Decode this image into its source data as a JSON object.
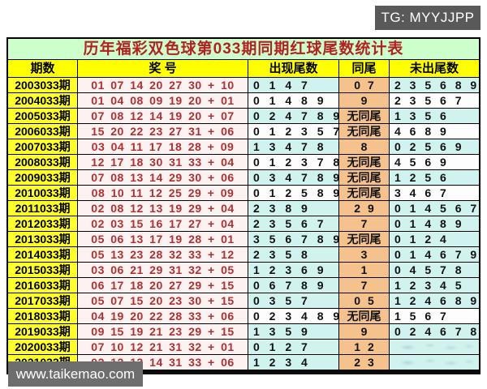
{
  "badges": {
    "tg": "TG: MYYJJPP",
    "site": "www.taikemao.com"
  },
  "table": {
    "title": "历年福彩双色球第033期同期红球尾数统计表",
    "headers": [
      "期数",
      "奖 号",
      "出现尾数",
      "同尾",
      "未出尾数"
    ],
    "rows": [
      {
        "period": "2003033期",
        "numbers": "01 07 14 20 27 30 + 10",
        "tails": "0 1 4 7",
        "same": "0 7",
        "missing": "2 3 5 6 8 9",
        "tint": "cyan",
        "smudged": false
      },
      {
        "period": "2004033期",
        "numbers": "01 04 08 09 19 20 + 01",
        "tails": "0 1 4 8 9",
        "same": "9",
        "missing": "2 3 5 6 7",
        "tint": "white",
        "smudged": false
      },
      {
        "period": "2005033期",
        "numbers": "07 08 12 14 19 20 + 07",
        "tails": "0 2 4 7 8 9",
        "same": "无同尾",
        "missing": "1 3 5 6",
        "tint": "cyan",
        "smudged": false
      },
      {
        "period": "2006033期",
        "numbers": "15 20 22 23 27 31 + 06",
        "tails": "0 1 2 3 5 7",
        "same": "无同尾",
        "missing": "4 6 8 9",
        "tint": "white",
        "smudged": false
      },
      {
        "period": "2007033期",
        "numbers": "03 04 11 17 18 28 + 09",
        "tails": "1 3 4 7 8",
        "same": "8",
        "missing": "0 2 5 6 9",
        "tint": "cyan",
        "smudged": false
      },
      {
        "period": "2008033期",
        "numbers": "12 17 18 30 31 33 + 04",
        "tails": "0 1 2 3 7 8",
        "same": "无同尾",
        "missing": "4 5 6 9",
        "tint": "white",
        "smudged": false
      },
      {
        "period": "2009033期",
        "numbers": "07 08 13 14 29 30 + 06",
        "tails": "0 3 4 7 8 9",
        "same": "无同尾",
        "missing": "1 2 5 6",
        "tint": "cyan",
        "smudged": false
      },
      {
        "period": "2010033期",
        "numbers": "08 10 11 12 25 29 + 09",
        "tails": "0 1 2 5 8 9",
        "same": "无同尾",
        "missing": "3 4 6 7",
        "tint": "white",
        "smudged": false
      },
      {
        "period": "2011033期",
        "numbers": "02 08 12 13 19 29 + 04",
        "tails": "2 3 8 9",
        "same": "2 9",
        "missing": "0 1 4 5 6 7",
        "tint": "cyan",
        "smudged": false
      },
      {
        "period": "2012033期",
        "numbers": "02 03 15 16 17 27 + 04",
        "tails": "2 3 5 6 7",
        "same": "7",
        "missing": "0 1 4 8 9",
        "tint": "cyan",
        "smudged": false
      },
      {
        "period": "2013033期",
        "numbers": "05 06 13 17 19 28 + 01",
        "tails": "3 5 6 7 8 9",
        "same": "无同尾",
        "missing": "0 1 2 4",
        "tint": "cyan",
        "smudged": false
      },
      {
        "period": "2014033期",
        "numbers": "05 13 23 28 32 33 + 12",
        "tails": "2 3 5 8",
        "same": "3",
        "missing": "0 1 4 6 7 9",
        "tint": "cyan",
        "smudged": false
      },
      {
        "period": "2015033期",
        "numbers": "03 06 21 29 31 32 + 05",
        "tails": "1 2 3 6 9",
        "same": "1",
        "missing": "0 4 5 7 8",
        "tint": "cyan",
        "smudged": false
      },
      {
        "period": "2016033期",
        "numbers": "06 17 18 20 27 29 + 15",
        "tails": "0 6 7 8 9",
        "same": "7",
        "missing": "1 2 3 4 5",
        "tint": "cyan",
        "smudged": false
      },
      {
        "period": "2017033期",
        "numbers": "05 07 15 20 23 30 + 15",
        "tails": "0 3 5 7",
        "same": "0 5",
        "missing": "1 2 4 6 8 9",
        "tint": "cyan",
        "smudged": false
      },
      {
        "period": "2018033期",
        "numbers": "04 19 20 22 28 33 + 06",
        "tails": "0 2 3 4 8 9",
        "same": "无同尾",
        "missing": "1 5 6 7",
        "tint": "white",
        "smudged": false
      },
      {
        "period": "2019033期",
        "numbers": "09 15 19 21 23 29 + 15",
        "tails": "1 3 5 9",
        "same": "9",
        "missing": "0 2 4 6 7 8",
        "tint": "cyan",
        "smudged": false
      },
      {
        "period": "2020033期",
        "numbers": "07 10 12 21 31 32 + 01",
        "tails": "0 1 2 7",
        "same": "1 2",
        "missing": "",
        "tint": "cyan",
        "smudged": true
      },
      {
        "period": "2021033期",
        "numbers": "02 12 13 14 31 33 + 06",
        "tails": "1 2 3 4",
        "same": "2 3",
        "missing": "",
        "tint": "cyan",
        "smudged": true
      }
    ]
  },
  "colors": {
    "title_bg": "#ccffcc",
    "title_text": "#b22222",
    "header_bg": "#ffff00",
    "period_bg": "#ffff2e",
    "numbers_bg": "#fdf2f2",
    "numbers_text": "#b03030",
    "same_tail_bg": "#f5c28e",
    "row_cyan": "#d0f3f0",
    "row_white": "#fdfdfd",
    "badge_bg": "#595959",
    "site_bg": "#6e6e6e"
  }
}
